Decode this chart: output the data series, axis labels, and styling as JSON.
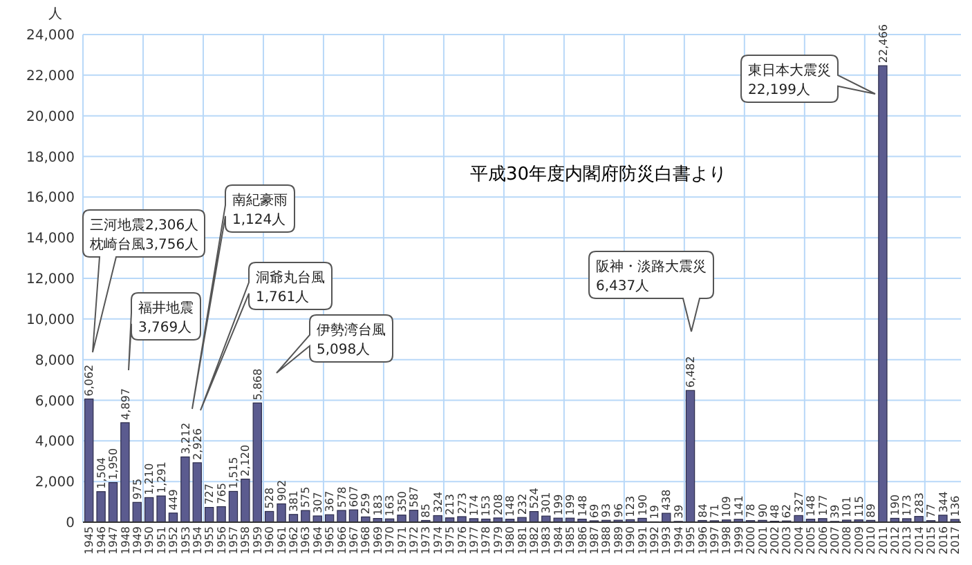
{
  "chart_data": {
    "type": "bar",
    "ylabel": "人",
    "categories": [
      "1945",
      "1946",
      "1947",
      "1948",
      "1949",
      "1950",
      "1951",
      "1952",
      "1953",
      "1954",
      "1955",
      "1956",
      "1957",
      "1958",
      "1959",
      "1960",
      "1961",
      "1962",
      "1963",
      "1964",
      "1965",
      "1966",
      "1967",
      "1968",
      "1969",
      "1970",
      "1971",
      "1972",
      "1973",
      "1974",
      "1975",
      "1976",
      "1977",
      "1978",
      "1979",
      "1980",
      "1981",
      "1982",
      "1983",
      "1984",
      "1985",
      "1986",
      "1987",
      "1988",
      "1989",
      "1990",
      "1991",
      "1992",
      "1993",
      "1994",
      "1995",
      "1996",
      "1997",
      "1998",
      "1999",
      "2000",
      "2001",
      "2002",
      "2003",
      "2004",
      "2005",
      "2006",
      "2007",
      "2008",
      "2009",
      "2010",
      "2011",
      "2012",
      "2013",
      "2014",
      "2015",
      "2016",
      "2017"
    ],
    "values": [
      6062,
      1504,
      1950,
      4897,
      975,
      1210,
      1291,
      449,
      3212,
      2926,
      727,
      765,
      1515,
      2120,
      5868,
      528,
      902,
      381,
      575,
      307,
      367,
      578,
      607,
      259,
      183,
      163,
      350,
      587,
      85,
      324,
      213,
      273,
      174,
      153,
      208,
      148,
      232,
      524,
      301,
      199,
      199,
      148,
      69,
      93,
      96,
      123,
      190,
      19,
      438,
      39,
      6482,
      84,
      71,
      109,
      141,
      78,
      90,
      48,
      62,
      327,
      148,
      177,
      39,
      101,
      115,
      89,
      22466,
      190,
      173,
      283,
      77,
      344,
      136
    ],
    "color": "#5b5b8f",
    "value_labels": [
      "6,062",
      "1,504",
      "1,950",
      "4,897",
      "975",
      "1,210",
      "1,291",
      "449",
      "3,212",
      "2,926",
      "727",
      "765",
      "1,515",
      "2,120",
      "5,868",
      "528",
      "902",
      "381",
      "575",
      "307",
      "367",
      "578",
      "607",
      "259",
      "183",
      "163",
      "350",
      "587",
      "85",
      "324",
      "213",
      "273",
      "174",
      "153",
      "208",
      "148",
      "232",
      "524",
      "301",
      "199",
      "199",
      "148",
      "69",
      "93",
      "96",
      "123",
      "190",
      "19",
      "438",
      "39",
      "6,482",
      "84",
      "71",
      "109",
      "141",
      "78",
      "90",
      "48",
      "62",
      "327",
      "148",
      "177",
      "39",
      "101",
      "115",
      "89",
      "22,466",
      "190",
      "173",
      "283",
      "77",
      "344",
      "136"
    ],
    "ylim": [
      0,
      24000
    ],
    "yticks": [
      {
        "value": 0,
        "label": "0"
      },
      {
        "value": 2000,
        "label": "2,000"
      },
      {
        "value": 4000,
        "label": "4,000"
      },
      {
        "value": 6000,
        "label": "6,000"
      },
      {
        "value": 8000,
        "label": "8,000"
      },
      {
        "value": 10000,
        "label": "10,000"
      },
      {
        "value": 12000,
        "label": "12,000"
      },
      {
        "value": 14000,
        "label": "14,000"
      },
      {
        "value": 16000,
        "label": "16,000"
      },
      {
        "value": 18000,
        "label": "18,000"
      },
      {
        "value": 20000,
        "label": "20,000"
      },
      {
        "value": 22000,
        "label": "22,000"
      },
      {
        "value": 24000,
        "label": "24,000"
      }
    ],
    "grid": true,
    "annotations": [
      "三河地震2,306人枕崎台風3,756人",
      "福井地震3,769人",
      "南紀豪雨1,124人",
      "洞爺丸台風1,761人",
      "伊勢湾台風5,098人",
      "阪神・淡路大震災6,437人",
      "東日本大震災22,199人",
      "平成30年度内閣府防災白書より"
    ]
  }
}
